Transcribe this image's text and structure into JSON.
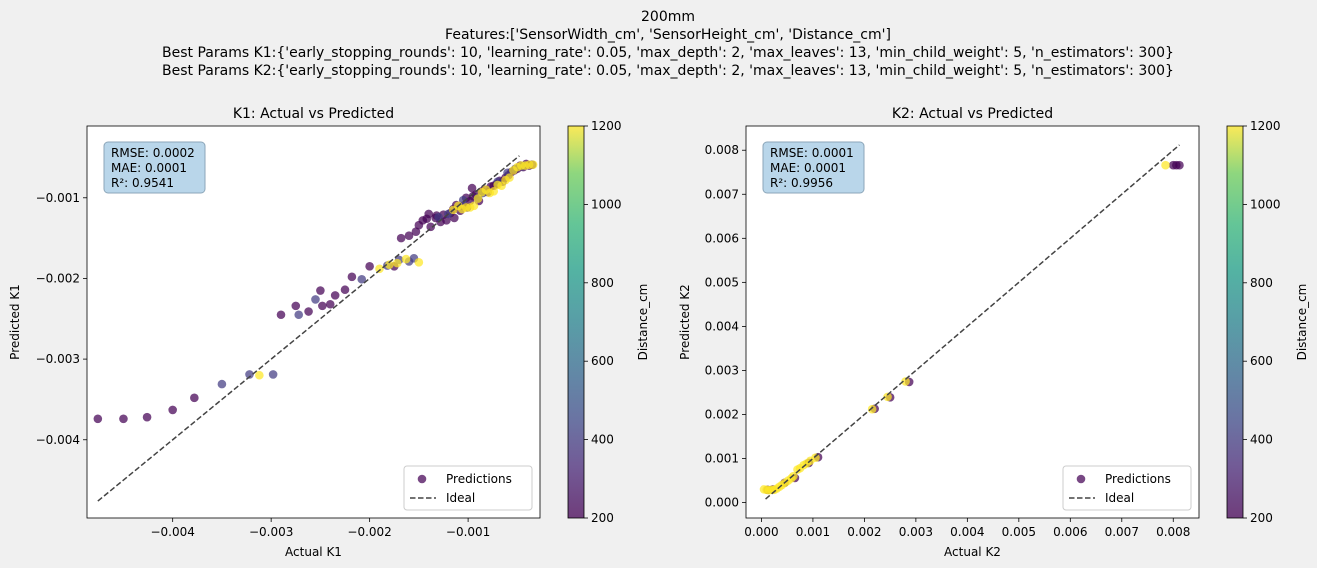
{
  "suptitle": [
    "200mm",
    "Features:['SensorWidth_cm', 'SensorHeight_cm', 'Distance_cm']",
    "Best Params K1:{'early_stopping_rounds': 10, 'learning_rate': 0.05, 'max_depth': 2, 'max_leaves': 13, 'min_child_weight': 5, 'n_estimators': 300}",
    "Best Params K2:{'early_stopping_rounds': 10, 'learning_rate': 0.05, 'max_depth': 2, 'max_leaves': 13, 'min_child_weight': 5, 'n_estimators': 300}"
  ],
  "chart_data": [
    {
      "type": "scatter",
      "title": "K1: Actual vs Predicted",
      "xlabel": "Actual K1",
      "ylabel": "Predicted K1",
      "xlim": [
        -0.00487,
        -0.00027
      ],
      "ylim": [
        -0.00497,
        -0.00011
      ],
      "xticks": [
        -0.004,
        -0.003,
        -0.002,
        -0.001
      ],
      "xtick_labels": [
        "−0.004",
        "−0.003",
        "−0.002",
        "−0.001"
      ],
      "yticks": [
        -0.004,
        -0.003,
        -0.002,
        -0.001
      ],
      "ytick_labels": [
        "−0.004",
        "−0.003",
        "−0.002",
        "−0.001"
      ],
      "stats": [
        "RMSE: 0.0002",
        "MAE: 0.0001",
        "R²: 0.9541"
      ],
      "ideal": [
        -0.00476,
        -0.00048
      ],
      "legend": [
        "Predictions",
        "Ideal"
      ],
      "legend_position": "lower-right",
      "colorbar": {
        "label": "Distance_cm",
        "min": 200,
        "max": 1200,
        "ticks": [
          200,
          400,
          600,
          800,
          1000,
          1200
        ]
      },
      "series": [
        {
          "distance": 200,
          "points": [
            [
              -0.00476,
              -0.00374
            ],
            [
              -0.0045,
              -0.00374
            ],
            [
              -0.00426,
              -0.00372
            ],
            [
              -0.004,
              -0.00363
            ],
            [
              -0.00378,
              -0.00348
            ],
            [
              -0.0029,
              -0.00245
            ],
            [
              -0.00275,
              -0.00234
            ],
            [
              -0.00262,
              -0.00241
            ],
            [
              -0.0025,
              -0.00215
            ],
            [
              -0.00248,
              -0.00234
            ],
            [
              -0.0024,
              -0.00232
            ],
            [
              -0.00235,
              -0.00221
            ],
            [
              -0.00225,
              -0.00214
            ],
            [
              -0.00218,
              -0.00198
            ],
            [
              -0.002,
              -0.00185
            ],
            [
              -0.00175,
              -0.00185
            ],
            [
              -0.00168,
              -0.0015
            ],
            [
              -0.0016,
              -0.00147
            ],
            [
              -0.00153,
              -0.00142
            ],
            [
              -0.0015,
              -0.00134
            ],
            [
              -0.00146,
              -0.00128
            ],
            [
              -0.00142,
              -0.00126
            ],
            [
              -0.00138,
              -0.00136
            ],
            [
              -0.00133,
              -0.00125
            ],
            [
              -0.00128,
              -0.0013
            ],
            [
              -0.00125,
              -0.00121
            ],
            [
              -0.00122,
              -0.00128
            ],
            [
              -0.00118,
              -0.00119
            ],
            [
              -0.00114,
              -0.00125
            ],
            [
              -0.00112,
              -0.00109
            ],
            [
              -0.00108,
              -0.00116
            ],
            [
              -0.00105,
              -0.0011
            ],
            [
              -0.00101,
              -0.00112
            ],
            [
              -0.00098,
              -0.00104
            ],
            [
              -0.00095,
              -0.00098
            ],
            [
              -0.00092,
              -0.00096
            ],
            [
              -0.00089,
              -0.00104
            ],
            [
              -0.00086,
              -0.00092
            ],
            [
              -0.00083,
              -0.0009
            ],
            [
              -0.0008,
              -0.00093
            ],
            [
              -0.00077,
              -0.00086
            ],
            [
              -0.00074,
              -0.00085
            ],
            [
              -0.00071,
              -0.00083
            ],
            [
              -0.00068,
              -0.00079
            ],
            [
              -0.00065,
              -0.0008
            ],
            [
              -0.00062,
              -0.00075
            ],
            [
              -0.00059,
              -0.00072
            ],
            [
              -0.00056,
              -0.00068
            ],
            [
              -0.00053,
              -0.00066
            ],
            [
              -0.0005,
              -0.00064
            ],
            [
              -0.00047,
              -0.0006
            ],
            [
              -0.00044,
              -0.00062
            ],
            [
              -0.00041,
              -0.00058
            ],
            [
              -0.00038,
              -0.0006
            ],
            [
              -0.00035,
              -0.00059
            ],
            [
              -0.0014,
              -0.0012
            ],
            [
              -0.00132,
              -0.00122
            ],
            [
              -0.00115,
              -0.00114
            ],
            [
              -0.00102,
              -0.001
            ],
            [
              -0.00096,
              -0.00088
            ]
          ]
        },
        {
          "distance": 400,
          "points": [
            [
              -0.0035,
              -0.00331
            ],
            [
              -0.00322,
              -0.00319
            ],
            [
              -0.00298,
              -0.00319
            ],
            [
              -0.00272,
              -0.00245
            ],
            [
              -0.00255,
              -0.00226
            ],
            [
              -0.00208,
              -0.00201
            ],
            [
              -0.00182,
              -0.00184
            ],
            [
              -0.0017,
              -0.00177
            ],
            [
              -0.0016,
              -0.00179
            ],
            [
              -0.00155,
              -0.00175
            ],
            [
              -0.0013,
              -0.00124
            ],
            [
              -0.0012,
              -0.0012
            ],
            [
              -0.00105,
              -0.00103
            ],
            [
              -0.0009,
              -0.001
            ],
            [
              -0.00085,
              -0.00094
            ],
            [
              -0.0007,
              -0.0008
            ],
            [
              -0.0006,
              -0.00069
            ],
            [
              -0.00052,
              -0.00064
            ],
            [
              -0.00045,
              -0.00061
            ]
          ]
        },
        {
          "distance": 1200,
          "points": [
            [
              -0.00312,
              -0.0032
            ],
            [
              -0.0019,
              -0.00188
            ],
            [
              -0.0018,
              -0.00183
            ],
            [
              -0.00172,
              -0.00181
            ],
            [
              -0.00163,
              -0.00176
            ],
            [
              -0.0015,
              -0.0018
            ],
            [
              -0.00115,
              -0.00115
            ],
            [
              -0.0011,
              -0.0011
            ],
            [
              -0.00106,
              -0.00114
            ],
            [
              -0.00102,
              -0.00112
            ],
            [
              -0.00098,
              -0.00112
            ],
            [
              -0.00094,
              -0.0011
            ],
            [
              -0.0009,
              -0.00101
            ],
            [
              -0.00086,
              -0.00093
            ],
            [
              -0.00082,
              -0.0009
            ],
            [
              -0.00078,
              -0.00094
            ],
            [
              -0.00074,
              -0.00092
            ],
            [
              -0.0007,
              -0.00084
            ],
            [
              -0.00066,
              -0.00085
            ],
            [
              -0.00062,
              -0.00078
            ],
            [
              -0.00058,
              -0.00075
            ],
            [
              -0.00054,
              -0.00066
            ],
            [
              -0.0005,
              -0.00062
            ],
            [
              -0.00046,
              -0.0006
            ],
            [
              -0.00042,
              -0.0006
            ],
            [
              -0.00038,
              -0.00059
            ],
            [
              -0.00034,
              -0.00059
            ]
          ]
        }
      ]
    },
    {
      "type": "scatter",
      "title": "K2: Actual vs Predicted",
      "xlabel": "Actual K2",
      "ylabel": "Predicted K2",
      "xlim": [
        -0.0003,
        0.0085
      ],
      "ylim": [
        -0.00035,
        0.00855
      ],
      "xticks": [
        0.0,
        0.001,
        0.002,
        0.003,
        0.004,
        0.005,
        0.006,
        0.007,
        0.008
      ],
      "xtick_labels": [
        "0.000",
        "0.001",
        "0.002",
        "0.003",
        "0.004",
        "0.005",
        "0.006",
        "0.007",
        "0.008"
      ],
      "yticks": [
        0.0,
        0.001,
        0.002,
        0.003,
        0.004,
        0.005,
        0.006,
        0.007,
        0.008
      ],
      "ytick_labels": [
        "0.000",
        "0.001",
        "0.002",
        "0.003",
        "0.004",
        "0.005",
        "0.006",
        "0.007",
        "0.008"
      ],
      "stats": [
        "RMSE: 0.0001",
        "MAE: 0.0001",
        "R²: 0.9956"
      ],
      "ideal": [
        8e-05,
        0.00812
      ],
      "legend": [
        "Predictions",
        "Ideal"
      ],
      "legend_position": "lower-right",
      "colorbar": {
        "label": "Distance_cm",
        "min": 200,
        "max": 1200,
        "ticks": [
          200,
          400,
          600,
          800,
          1000,
          1200
        ]
      },
      "series": [
        {
          "distance": 200,
          "points": [
            [
              0.00806,
              0.00766
            ],
            [
              0.00812,
              0.00766
            ],
            [
              0.008,
              0.00766
            ],
            [
              0.00287,
              0.00274
            ],
            [
              0.0025,
              0.00239
            ],
            [
              0.0022,
              0.00213
            ],
            [
              0.0011,
              0.00103
            ],
            [
              0.00092,
              0.0009
            ],
            [
              0.00065,
              0.00056
            ],
            [
              0.00045,
              0.00045
            ],
            [
              0.00022,
              0.0003
            ],
            [
              0.00012,
              0.00029
            ]
          ]
        },
        {
          "distance": 1200,
          "points": [
            [
              0.00785,
              0.00766
            ],
            [
              0.0028,
              0.00275
            ],
            [
              0.00245,
              0.0024
            ],
            [
              0.00215,
              0.00212
            ],
            [
              0.00105,
              0.00102
            ],
            [
              0.00095,
              0.00095
            ],
            [
              0.00088,
              0.00089
            ],
            [
              0.00082,
              0.00085
            ],
            [
              0.00075,
              0.00078
            ],
            [
              0.0007,
              0.00075
            ],
            [
              0.00062,
              0.0006
            ],
            [
              0.00058,
              0.00055
            ],
            [
              0.00052,
              0.0005
            ],
            [
              0.00046,
              0.00045
            ],
            [
              0.0004,
              0.0004
            ],
            [
              0.00035,
              0.00036
            ],
            [
              0.0003,
              0.00032
            ],
            [
              0.00025,
              0.00029
            ],
            [
              0.0002,
              0.00029
            ],
            [
              0.00015,
              0.00028
            ],
            [
              0.0001,
              0.00029
            ],
            [
              5e-05,
              0.0003
            ]
          ]
        }
      ]
    }
  ]
}
